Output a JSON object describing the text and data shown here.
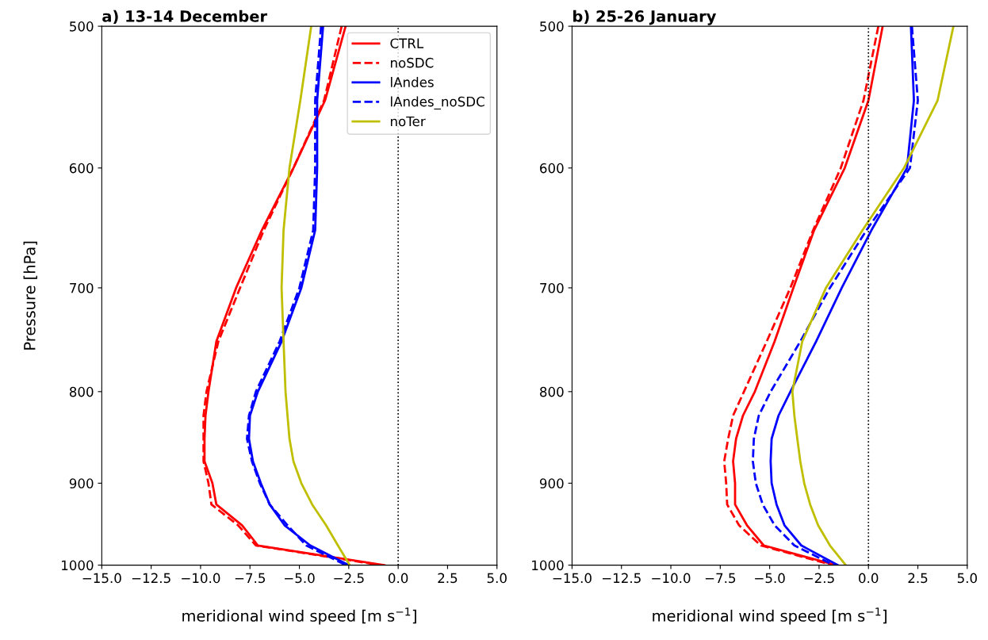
{
  "chart_data": [
    {
      "type": "line",
      "title": "a) 13-14 December",
      "xlabel": "meridional wind speed [m s$^{−1}$]",
      "ylabel": "Pressure [hPa]",
      "log": "y",
      "xlim": [
        -15,
        5
      ],
      "xticks": [
        {
          "value": -15,
          "label": "−15.0"
        },
        {
          "value": -12.5,
          "label": "−12.5"
        },
        {
          "value": -10,
          "label": "−10.0"
        },
        {
          "value": -7.5,
          "label": "−7.5"
        },
        {
          "value": -5,
          "label": "−5.0"
        },
        {
          "value": -2.5,
          "label": "−2.5"
        },
        {
          "value": 0,
          "label": "0.0"
        },
        {
          "value": 2.5,
          "label": "2.5"
        },
        {
          "value": 5,
          "label": "5.0"
        }
      ],
      "ylim": [
        1000,
        500
      ],
      "yticks": [
        500,
        600,
        700,
        800,
        900,
        1000
      ],
      "legend": "top right",
      "grid": false,
      "ref_lines": [
        {
          "axis": "x",
          "value": 0,
          "color": "#000000",
          "line_style": "dotted"
        }
      ],
      "series": [
        {
          "name": "CTRL",
          "color": "#ff0000",
          "line_style": "solid",
          "x": [
            -2.66,
            -3.7,
            -5.3,
            -6.9,
            -8.2,
            -9.2,
            -9.6,
            -9.75,
            -9.8,
            -9.8,
            -9.4,
            -9.2,
            -7.9,
            -7.1,
            -0.7
          ],
          "values": [
            500,
            550,
            600,
            650,
            700,
            750,
            800,
            825,
            850,
            875,
            900,
            925,
            950,
            975,
            1000
          ]
        },
        {
          "name": "noSDC",
          "color": "#ff0000",
          "line_style": "dashed",
          "x": [
            -2.86,
            -3.75,
            -5.3,
            -6.8,
            -8.0,
            -9.1,
            -9.7,
            -9.85,
            -9.85,
            -9.85,
            -9.6,
            -9.45,
            -8.1,
            -7.2,
            -0.9
          ],
          "values": [
            500,
            550,
            600,
            650,
            700,
            750,
            800,
            825,
            850,
            875,
            900,
            925,
            950,
            975,
            1000
          ]
        },
        {
          "name": "lAndes",
          "color": "#0000ff",
          "line_style": "solid",
          "x": [
            -3.8,
            -4.1,
            -4.1,
            -4.2,
            -4.9,
            -5.9,
            -7.1,
            -7.5,
            -7.55,
            -7.35,
            -6.95,
            -6.5,
            -5.75,
            -4.45,
            -2.5
          ],
          "values": [
            500,
            550,
            600,
            650,
            700,
            750,
            800,
            825,
            850,
            875,
            900,
            925,
            950,
            975,
            1000
          ]
        },
        {
          "name": "lAndes_noSDC",
          "color": "#0000ff",
          "line_style": "dashed",
          "x": [
            -3.9,
            -4.2,
            -4.2,
            -4.3,
            -5.0,
            -6.0,
            -7.2,
            -7.55,
            -7.65,
            -7.4,
            -7.0,
            -6.5,
            -5.6,
            -4.65,
            -2.65
          ],
          "values": [
            500,
            550,
            600,
            650,
            700,
            750,
            800,
            825,
            850,
            875,
            900,
            925,
            950,
            975,
            1000
          ]
        },
        {
          "name": "noTer",
          "color": "#bfbf00",
          "line_style": "solid",
          "x": [
            -4.4,
            -4.95,
            -5.5,
            -5.8,
            -5.9,
            -5.8,
            -5.7,
            -5.6,
            -5.5,
            -5.3,
            -4.9,
            -4.35,
            -3.65,
            -3.05,
            -2.45
          ],
          "values": [
            500,
            550,
            600,
            650,
            700,
            750,
            800,
            825,
            850,
            875,
            900,
            925,
            950,
            975,
            1000
          ]
        }
      ]
    },
    {
      "type": "line",
      "title": "b) 25-26 January",
      "xlabel": "meridional wind speed [m s$^{−1}$]",
      "log": "y",
      "xlim": [
        -15,
        5
      ],
      "xticks": [
        {
          "value": -15,
          "label": "−15.0"
        },
        {
          "value": -12.5,
          "label": "−12.5"
        },
        {
          "value": -10,
          "label": "−10.0"
        },
        {
          "value": -7.5,
          "label": "−7.5"
        },
        {
          "value": -5,
          "label": "−5.0"
        },
        {
          "value": -2.5,
          "label": "−2.5"
        },
        {
          "value": 0,
          "label": "0.0"
        },
        {
          "value": 2.5,
          "label": "2.5"
        },
        {
          "value": 5,
          "label": "5.0"
        }
      ],
      "ylim": [
        1000,
        500
      ],
      "yticks": [
        500,
        600,
        700,
        800,
        900,
        1000
      ],
      "grid": false,
      "ref_lines": [
        {
          "axis": "x",
          "value": 0,
          "color": "#000000",
          "line_style": "dotted"
        }
      ],
      "series": [
        {
          "color": "#ff0000",
          "line_style": "solid",
          "x": [
            0.72,
            0.0,
            -1.2,
            -2.75,
            -3.8,
            -4.75,
            -5.75,
            -6.35,
            -6.7,
            -6.85,
            -6.75,
            -6.75,
            -6.15,
            -5.3,
            -1.65
          ],
          "values": [
            500,
            550,
            600,
            650,
            700,
            750,
            800,
            825,
            850,
            875,
            900,
            925,
            950,
            975,
            1000
          ]
        },
        {
          "color": "#ff0000",
          "line_style": "dashed",
          "x": [
            0.5,
            -0.25,
            -1.4,
            -2.8,
            -3.95,
            -5.15,
            -6.3,
            -6.85,
            -7.1,
            -7.3,
            -7.2,
            -7.15,
            -6.55,
            -5.45,
            -1.8
          ],
          "values": [
            500,
            550,
            600,
            650,
            700,
            750,
            800,
            825,
            850,
            875,
            900,
            925,
            950,
            975,
            1000
          ]
        },
        {
          "color": "#0000ff",
          "line_style": "solid",
          "x": [
            2.15,
            2.3,
            1.95,
            0.15,
            -1.35,
            -2.65,
            -3.95,
            -4.55,
            -4.9,
            -4.95,
            -4.9,
            -4.65,
            -4.25,
            -3.4,
            -1.55
          ],
          "values": [
            500,
            550,
            600,
            650,
            700,
            750,
            800,
            825,
            850,
            875,
            900,
            925,
            950,
            975,
            1000
          ]
        },
        {
          "color": "#0000ff",
          "line_style": "dashed",
          "x": [
            2.2,
            2.5,
            2.1,
            -0.1,
            -1.95,
            -3.45,
            -4.95,
            -5.55,
            -5.8,
            -5.85,
            -5.7,
            -5.35,
            -4.75,
            -3.75,
            -1.75
          ],
          "values": [
            500,
            550,
            600,
            650,
            700,
            750,
            800,
            825,
            850,
            875,
            900,
            925,
            950,
            975,
            1000
          ]
        },
        {
          "color": "#bfbf00",
          "line_style": "solid",
          "x": [
            4.3,
            3.5,
            1.8,
            -0.3,
            -2.15,
            -3.35,
            -3.85,
            -3.75,
            -3.6,
            -3.45,
            -3.25,
            -2.95,
            -2.55,
            -1.95,
            -1.15
          ],
          "values": [
            500,
            550,
            600,
            650,
            700,
            750,
            800,
            825,
            850,
            875,
            900,
            925,
            950,
            975,
            1000
          ]
        }
      ]
    }
  ]
}
